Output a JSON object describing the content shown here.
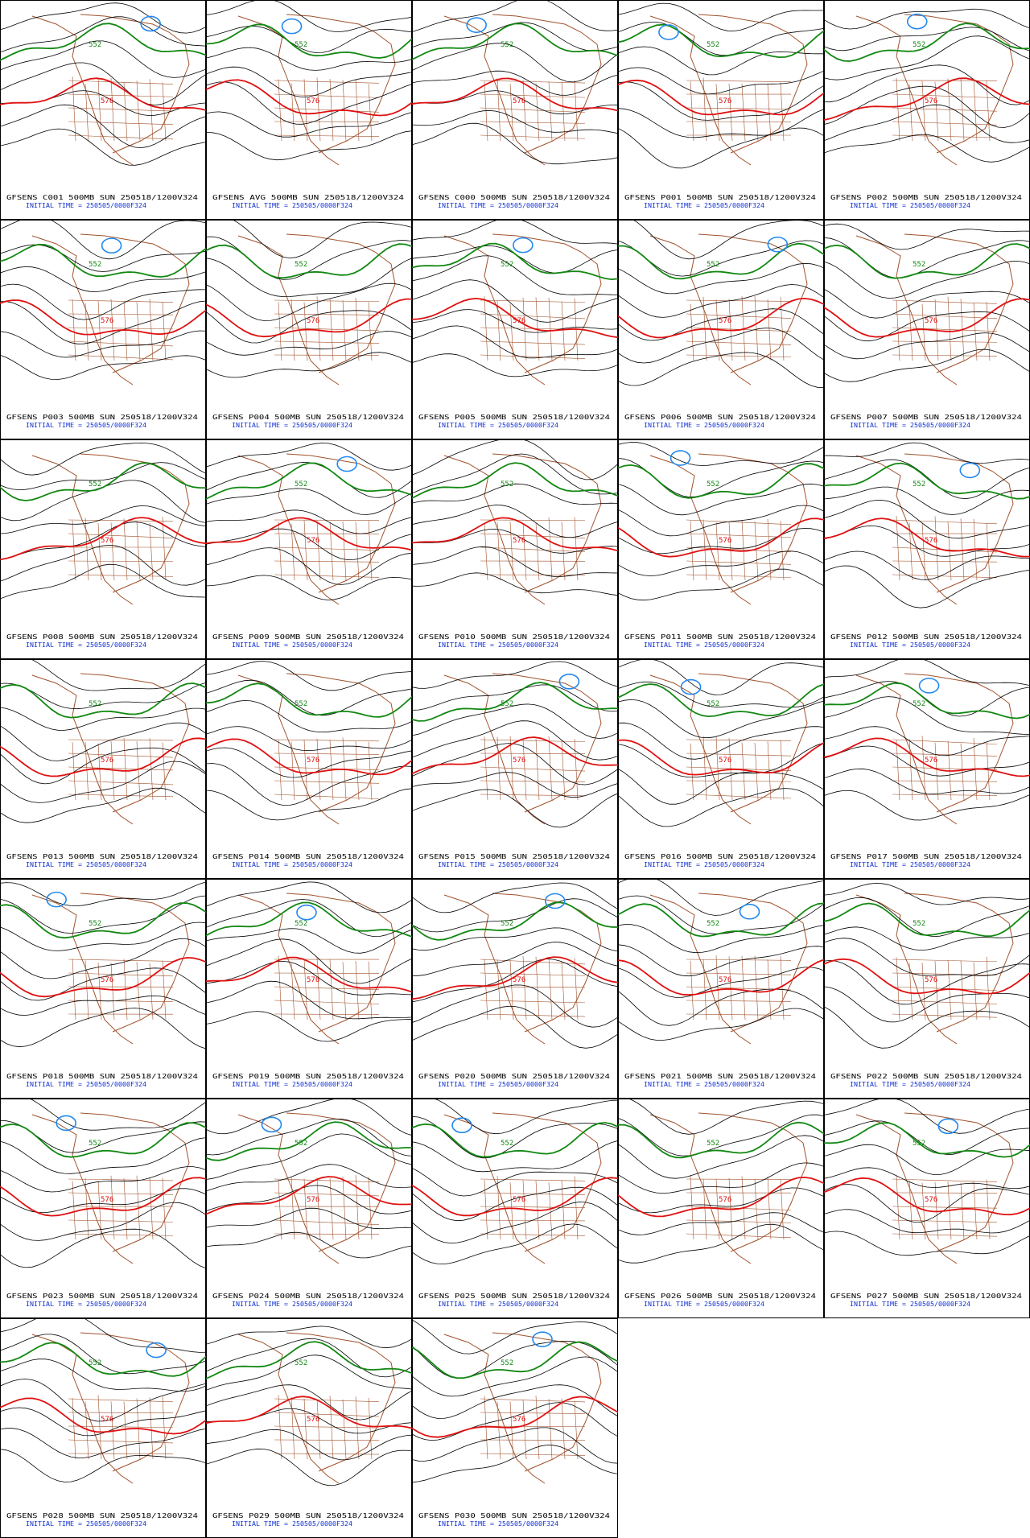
{
  "panels": [
    {
      "title": "GFSENS C001 500MB SUN 250518/1200V324",
      "init": "INITIAL TIME = 250505/0000F324",
      "contour_labels": [
        "552",
        "576"
      ]
    },
    {
      "title": "GFSENS AVG 500MB SUN 250518/1200V324",
      "init": "INITIAL TIME = 250505/0000F324",
      "contour_labels": [
        "552",
        "576"
      ]
    },
    {
      "title": "GFSENS C000 500MB SUN 250518/1200V324",
      "init": "INITIAL TIME = 250505/0000F324",
      "contour_labels": [
        "552",
        "576"
      ]
    },
    {
      "title": "GFSENS P001 500MB SUN 250518/1200V324",
      "init": "INITIAL TIME = 250505/0000F324",
      "contour_labels": [
        "552",
        "576"
      ]
    },
    {
      "title": "GFSENS P002 500MB SUN 250518/1200V324",
      "init": "INITIAL TIME = 250505/0000F324",
      "contour_labels": [
        "552",
        "576"
      ]
    },
    {
      "title": "GFSENS P003 500MB SUN 250518/1200V324",
      "init": "INITIAL TIME = 250505/0000F324",
      "contour_labels": [
        "552",
        "576"
      ]
    },
    {
      "title": "GFSENS P004 500MB SUN 250518/1200V324",
      "init": "INITIAL TIME = 250505/0000F324",
      "contour_labels": [
        "552",
        "576"
      ]
    },
    {
      "title": "GFSENS P005 500MB SUN 250518/1200V324",
      "init": "INITIAL TIME = 250505/0000F324",
      "contour_labels": [
        "552",
        "576"
      ]
    },
    {
      "title": "GFSENS P006 500MB SUN 250518/1200V324",
      "init": "INITIAL TIME = 250505/0000F324",
      "contour_labels": [
        "552",
        "576"
      ]
    },
    {
      "title": "GFSENS P007 500MB SUN 250518/1200V324",
      "init": "INITIAL TIME = 250505/0000F324",
      "contour_labels": [
        "552",
        "576"
      ]
    },
    {
      "title": "GFSENS P008 500MB SUN 250518/1200V324",
      "init": "INITIAL TIME = 250505/0000F324",
      "contour_labels": [
        "552",
        "576"
      ]
    },
    {
      "title": "GFSENS P009 500MB SUN 250518/1200V324",
      "init": "INITIAL TIME = 250505/0000F324",
      "contour_labels": [
        "552",
        "576"
      ]
    },
    {
      "title": "GFSENS P010 500MB SUN 250518/1200V324",
      "init": "INITIAL TIME = 250505/0000F324",
      "contour_labels": [
        "552",
        "576"
      ]
    },
    {
      "title": "GFSENS P011 500MB SUN 250518/1200V324",
      "init": "INITIAL TIME = 250505/0000F324",
      "contour_labels": [
        "552",
        "576"
      ]
    },
    {
      "title": "GFSENS P012 500MB SUN 250518/1200V324",
      "init": "INITIAL TIME = 250505/0000F324",
      "contour_labels": [
        "552",
        "576"
      ]
    },
    {
      "title": "GFSENS P013 500MB SUN 250518/1200V324",
      "init": "INITIAL TIME = 250505/0000F324",
      "contour_labels": [
        "552",
        "576"
      ]
    },
    {
      "title": "GFSENS P014 500MB SUN 250518/1200V324",
      "init": "INITIAL TIME = 250505/0000F324",
      "contour_labels": [
        "552",
        "576"
      ]
    },
    {
      "title": "GFSENS P015 500MB SUN 250518/1200V324",
      "init": "INITIAL TIME = 250505/0000F324",
      "contour_labels": [
        "552",
        "576"
      ]
    },
    {
      "title": "GFSENS P016 500MB SUN 250518/1200V324",
      "init": "INITIAL TIME = 250505/0000F324",
      "contour_labels": [
        "552",
        "576"
      ]
    },
    {
      "title": "GFSENS P017 500MB SUN 250518/1200V324",
      "init": "INITIAL TIME = 250505/0000F324",
      "contour_labels": [
        "552",
        "576"
      ]
    },
    {
      "title": "GFSENS P018 500MB SUN 250518/1200V324",
      "init": "INITIAL TIME = 250505/0000F324",
      "contour_labels": [
        "552",
        "576"
      ]
    },
    {
      "title": "GFSENS P019 500MB SUN 250518/1200V324",
      "init": "INITIAL TIME = 250505/0000F324",
      "contour_labels": [
        "552",
        "576"
      ]
    },
    {
      "title": "GFSENS P020 500MB SUN 250518/1200V324",
      "init": "INITIAL TIME = 250505/0000F324",
      "contour_labels": [
        "552",
        "576"
      ]
    },
    {
      "title": "GFSENS P021 500MB SUN 250518/1200V324",
      "init": "INITIAL TIME = 250505/0000F324",
      "contour_labels": [
        "552",
        "576"
      ]
    },
    {
      "title": "GFSENS P022 500MB SUN 250518/1200V324",
      "init": "INITIAL TIME = 250505/0000F324",
      "contour_labels": [
        "552",
        "576"
      ]
    },
    {
      "title": "GFSENS P023 500MB SUN 250518/1200V324",
      "init": "INITIAL TIME = 250505/0000F324",
      "contour_labels": [
        "552",
        "576"
      ]
    },
    {
      "title": "GFSENS P024 500MB SUN 250518/1200V324",
      "init": "INITIAL TIME = 250505/0000F324",
      "contour_labels": [
        "552",
        "576"
      ]
    },
    {
      "title": "GFSENS P025 500MB SUN 250518/1200V324",
      "init": "INITIAL TIME = 250505/0000F324",
      "contour_labels": [
        "552",
        "576"
      ]
    },
    {
      "title": "GFSENS P026 500MB SUN 250518/1200V324",
      "init": "INITIAL TIME = 250505/0000F324",
      "contour_labels": [
        "552",
        "576"
      ]
    },
    {
      "title": "GFSENS P027 500MB SUN 250518/1200V324",
      "init": "INITIAL TIME = 250505/0000F324",
      "contour_labels": [
        "552",
        "576"
      ]
    },
    {
      "title": "GFSENS P028 500MB SUN 250518/1200V324",
      "init": "INITIAL TIME = 250505/0000F324",
      "contour_labels": [
        "552",
        "576"
      ]
    },
    {
      "title": "GFSENS P029 500MB SUN 250518/1200V324",
      "init": "INITIAL TIME = 250505/0000F324",
      "contour_labels": [
        "552",
        "576"
      ]
    },
    {
      "title": "GFSENS P030 500MB SUN 250518/1200V324",
      "init": "INITIAL TIME = 250505/0000F324",
      "contour_labels": [
        "552",
        "576"
      ]
    }
  ]
}
